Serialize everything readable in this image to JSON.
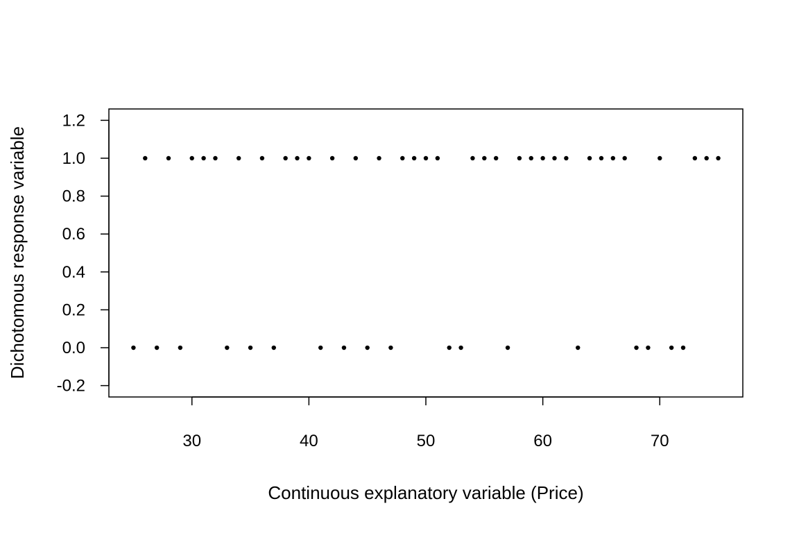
{
  "chart_data": {
    "type": "scatter",
    "title": "",
    "xlabel": "Continuous explanatory variable (Price)",
    "ylabel": "Dichotomous response variable",
    "xlim": [
      22.9,
      77.1
    ],
    "ylim": [
      -0.26,
      1.26
    ],
    "xticks": [
      30,
      40,
      50,
      60,
      70
    ],
    "yticks": [
      -0.2,
      0.0,
      0.2,
      0.4,
      0.6,
      0.8,
      1.0,
      1.2
    ],
    "xtick_labels": [
      "30",
      "40",
      "50",
      "60",
      "70"
    ],
    "ytick_labels": [
      "-0.2",
      "0.0",
      "0.2",
      "0.4",
      "0.6",
      "0.8",
      "1.0",
      "1.2"
    ],
    "grid": false,
    "point_color": "#000000",
    "series": [
      {
        "x": [
          26,
          28,
          30,
          31,
          32,
          34,
          36,
          38,
          39,
          40,
          42,
          44,
          46,
          48,
          49,
          50,
          51,
          54,
          55,
          56,
          58,
          59,
          60,
          61,
          62,
          64,
          65,
          66,
          67,
          70,
          73,
          74,
          75
        ],
        "y": [
          1,
          1,
          1,
          1,
          1,
          1,
          1,
          1,
          1,
          1,
          1,
          1,
          1,
          1,
          1,
          1,
          1,
          1,
          1,
          1,
          1,
          1,
          1,
          1,
          1,
          1,
          1,
          1,
          1,
          1,
          1,
          1,
          1
        ]
      },
      {
        "x": [
          25,
          27,
          29,
          33,
          35,
          37,
          41,
          43,
          45,
          47,
          52,
          53,
          57,
          63,
          68,
          69,
          71,
          72
        ],
        "y": [
          0,
          0,
          0,
          0,
          0,
          0,
          0,
          0,
          0,
          0,
          0,
          0,
          0,
          0,
          0,
          0,
          0,
          0
        ]
      }
    ]
  }
}
